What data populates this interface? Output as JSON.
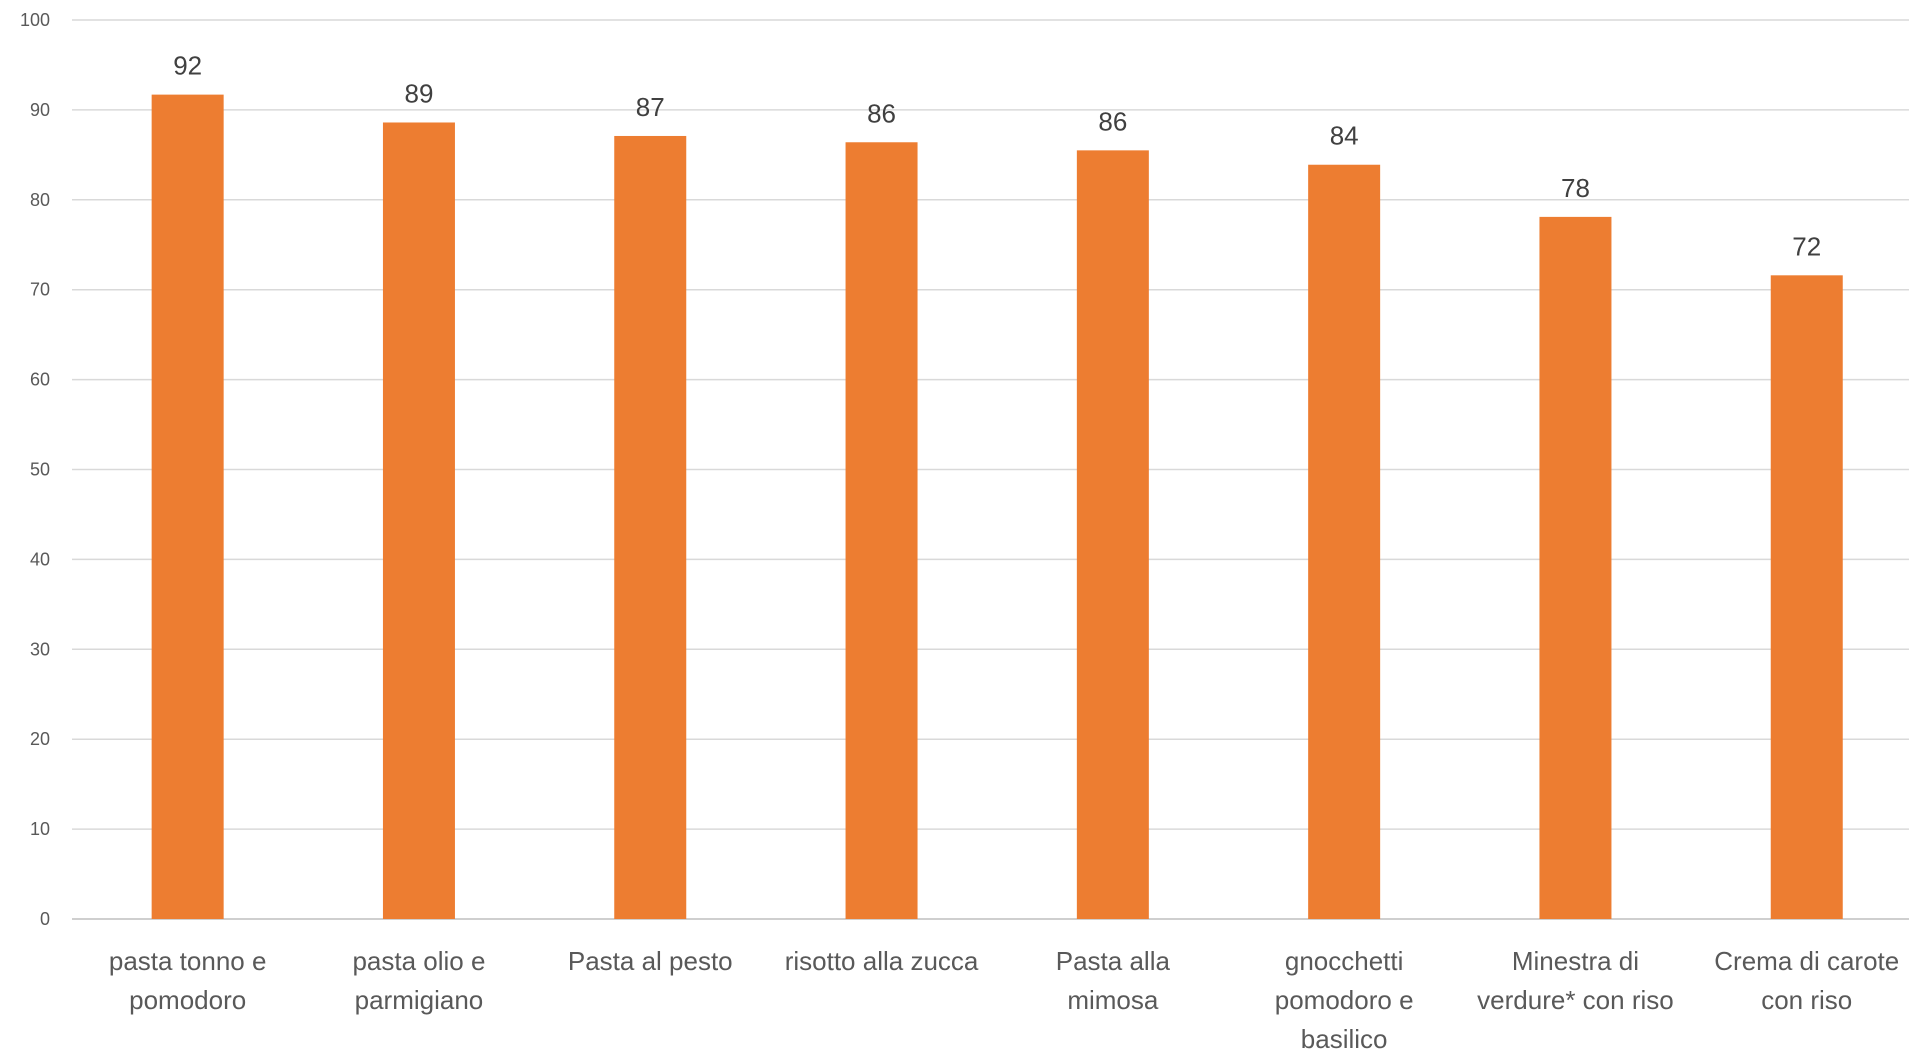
{
  "chart_data": {
    "type": "bar",
    "categories": [
      [
        "pasta tonno e",
        "pomodoro"
      ],
      [
        "pasta olio e",
        "parmigiano"
      ],
      [
        "Pasta al pesto"
      ],
      [
        "risotto alla zucca"
      ],
      [
        "Pasta alla",
        "mimosa"
      ],
      [
        "gnocchetti",
        "pomodoro e",
        "basilico"
      ],
      [
        "Minestra di",
        "verdure* con riso"
      ],
      [
        "Crema di carote",
        "con riso"
      ]
    ],
    "values": [
      91.7,
      88.6,
      87.1,
      86.4,
      85.5,
      83.9,
      78.1,
      71.6
    ],
    "data_labels": [
      "92",
      "89",
      "87",
      "86",
      "86",
      "84",
      "78",
      "72"
    ],
    "ylim": [
      0,
      100
    ],
    "yticks": [
      0,
      10,
      20,
      30,
      40,
      50,
      60,
      70,
      80,
      90,
      100
    ],
    "grid": true,
    "bar_color": "#ED7D31",
    "title": "",
    "xlabel": "",
    "ylabel": ""
  }
}
